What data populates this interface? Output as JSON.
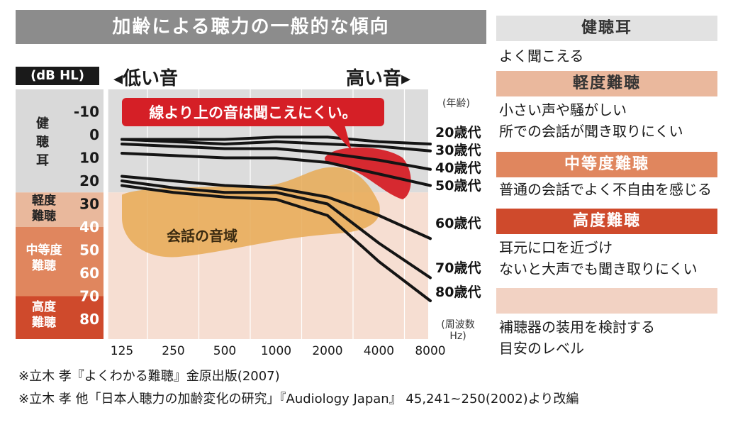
{
  "title": "加齢による聴力の一般的な傾向",
  "unit_label": "(dB HL)",
  "low_sound": "◂低い音",
  "high_sound": "高い音▸",
  "callout": "線より上の音は聞こえにくい。",
  "speech_area_label": "会話の音域",
  "age_header": "(年齢)",
  "freq_label": "(周波数 Hz)",
  "zones": [
    {
      "label": "健聴耳",
      "from": -15,
      "to": 25,
      "color": "#d9d9d9"
    },
    {
      "label": "軽度難聴",
      "from": 25,
      "to": 40,
      "color": "#e9b89c"
    },
    {
      "label": "中等度難聴",
      "from": 40,
      "to": 70,
      "color": "#e0865e"
    },
    {
      "label": "高度難聴",
      "from": 70,
      "to": 90,
      "color": "#cf4a2c"
    }
  ],
  "chart_data": {
    "type": "line",
    "title": "加齢による聴力の一般的な傾向",
    "xlabel": "周波数 Hz",
    "ylabel": "dB HL",
    "categories": [
      "125",
      "250",
      "500",
      "1000",
      "2000",
      "4000",
      "8000"
    ],
    "y_ticks": [
      -10,
      0,
      10,
      20,
      30,
      40,
      50,
      60,
      70,
      80
    ],
    "ylim": [
      -15,
      90
    ],
    "series": [
      {
        "name": "20歳代",
        "values": [
          2,
          2,
          2,
          1,
          1,
          3,
          4
        ]
      },
      {
        "name": "30歳代",
        "values": [
          2,
          3,
          4,
          3,
          4,
          5,
          7
        ]
      },
      {
        "name": "40歳代",
        "values": [
          4,
          5,
          6,
          6,
          8,
          11,
          15
        ]
      },
      {
        "name": "50歳代",
        "values": [
          8,
          9,
          10,
          10,
          12,
          17,
          22
        ]
      },
      {
        "name": "60歳代",
        "values": [
          18,
          20,
          22,
          23,
          27,
          35,
          45
        ]
      },
      {
        "name": "70歳代",
        "values": [
          20,
          23,
          25,
          25,
          30,
          47,
          62
        ]
      },
      {
        "name": "80歳代",
        "values": [
          22,
          25,
          27,
          28,
          35,
          55,
          72
        ]
      }
    ]
  },
  "right_panel": [
    {
      "header": "健聴耳",
      "header_bg": "#e2e2e2",
      "header_color": "#333333",
      "lines": [
        "よく聞こえる"
      ]
    },
    {
      "header": "軽度難聴",
      "header_bg": "#eab89d",
      "header_color": "#333333",
      "lines": [
        "小さい声や騒がしい",
        "所での会話が聞き取りにくい"
      ]
    },
    {
      "header": "中等度難聴",
      "header_bg": "#e0865e",
      "header_color": "#ffffff",
      "lines": [
        "普通の会話でよく不自由を感じる"
      ]
    },
    {
      "header": "高度難聴",
      "header_bg": "#cf4a2c",
      "header_color": "#ffffff",
      "lines": [
        "耳元に口を近づけ",
        "ないと大声でも聞き取りにくい"
      ]
    },
    {
      "header": "",
      "header_bg": "#f2d2c3",
      "header_color": "#333333",
      "lines": [
        "補聴器の装用を検討する",
        "目安のレベル"
      ]
    }
  ],
  "footnotes": [
    "※立木 孝『よくわかる難聴』金原出版(2007)",
    "※立木 孝 他「日本人聴力の加齢変化の研究」『Audiology Japan』 45,241~250(2002)より改編"
  ]
}
